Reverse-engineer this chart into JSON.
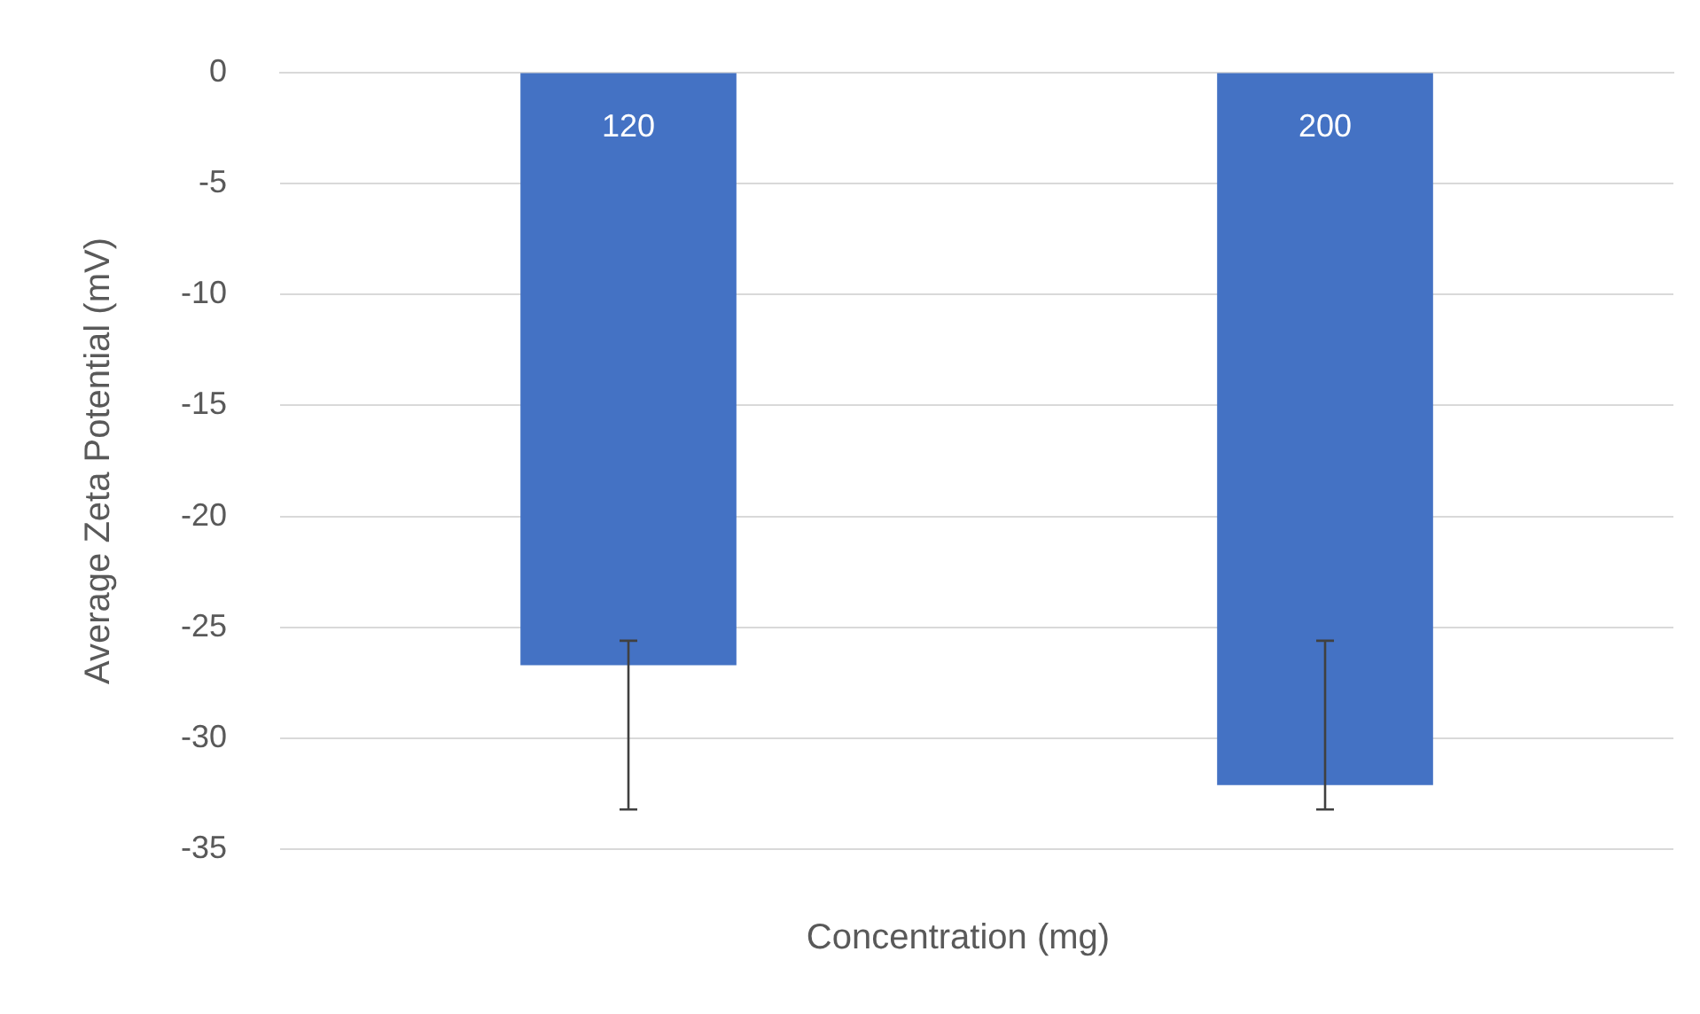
{
  "chart_data": {
    "type": "bar",
    "ylabel": "Average Zeta Potential (mV)",
    "xlabel": "Concentration (mg)",
    "categories": [
      "120",
      "200"
    ],
    "values": [
      -26.7,
      -32.1
    ],
    "errors": [
      [
        -33.2,
        -25.6
      ],
      [
        -33.2,
        -25.6
      ]
    ],
    "color": "#4472c4",
    "ylim": [
      -35,
      0
    ],
    "yticks": [
      -35,
      -30,
      -25,
      -20,
      -15,
      -10,
      -5,
      0
    ],
    "grid": "y",
    "legend": false
  }
}
